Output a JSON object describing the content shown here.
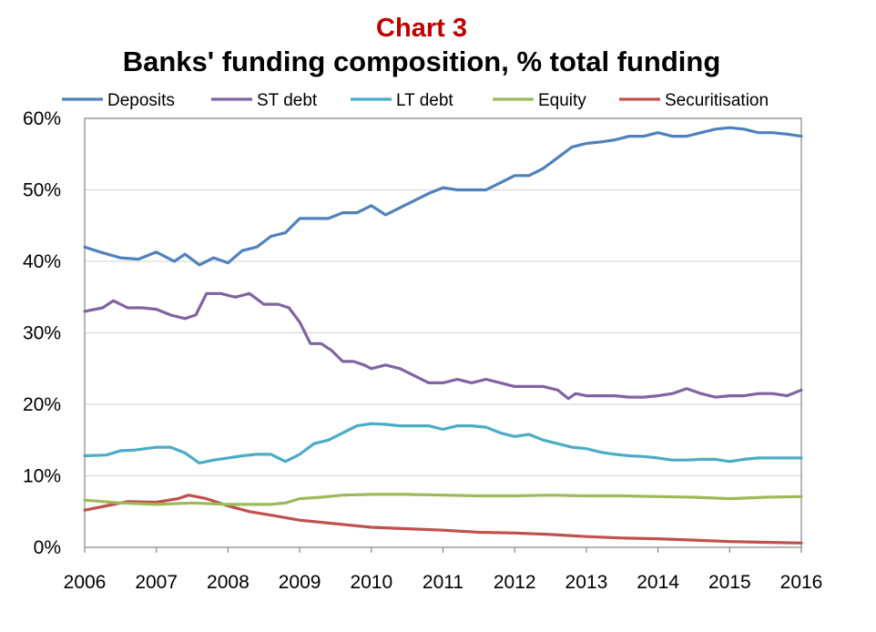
{
  "chart_data": {
    "type": "line",
    "kicker": "Chart 3",
    "title": "Banks' funding composition, % total funding",
    "xlabel": "",
    "ylabel": "",
    "xlim": [
      2006,
      2016
    ],
    "ylim": [
      0,
      60
    ],
    "x_ticks": [
      "2006",
      "2007",
      "2008",
      "2009",
      "2010",
      "2011",
      "2012",
      "2013",
      "2014",
      "2015",
      "2016"
    ],
    "y_ticks": [
      "0%",
      "10%",
      "20%",
      "30%",
      "40%",
      "50%",
      "60%"
    ],
    "grid": "horizontal",
    "legend_position": "top",
    "colors": {
      "kicker": "#c00000",
      "Deposits": "#4f81bd",
      "ST debt": "#8064a2",
      "LT debt": "#4bacc6",
      "Equity": "#9bbb59",
      "Securitisation": "#c0504d",
      "grid": "#d9d9d9",
      "axis": "#868686"
    },
    "series": [
      {
        "name": "Deposits",
        "x": [
          2006.0,
          2006.25,
          2006.5,
          2006.75,
          2007.0,
          2007.25,
          2007.4,
          2007.6,
          2007.8,
          2008.0,
          2008.2,
          2008.4,
          2008.6,
          2008.8,
          2009.0,
          2009.2,
          2009.4,
          2009.6,
          2009.8,
          2010.0,
          2010.2,
          2010.4,
          2010.6,
          2010.8,
          2011.0,
          2011.2,
          2011.4,
          2011.6,
          2011.8,
          2012.0,
          2012.2,
          2012.4,
          2012.6,
          2012.8,
          2013.0,
          2013.2,
          2013.4,
          2013.6,
          2013.8,
          2014.0,
          2014.2,
          2014.4,
          2014.6,
          2014.8,
          2015.0,
          2015.2,
          2015.4,
          2015.6,
          2015.8,
          2016.0
        ],
        "values": [
          42.0,
          41.2,
          40.5,
          40.3,
          41.3,
          40.0,
          41.0,
          39.5,
          40.5,
          39.8,
          41.5,
          42.0,
          43.5,
          44.0,
          46.0,
          46.0,
          46.0,
          46.8,
          46.8,
          47.8,
          46.5,
          47.5,
          48.5,
          49.5,
          50.3,
          50.0,
          50.0,
          50.0,
          51.0,
          52.0,
          52.0,
          53.0,
          54.5,
          56.0,
          56.5,
          56.7,
          57.0,
          57.5,
          57.5,
          58.0,
          57.5,
          57.5,
          58.0,
          58.5,
          58.7,
          58.5,
          58.0,
          58.0,
          57.8,
          57.5
        ]
      },
      {
        "name": "ST debt",
        "x": [
          2006.0,
          2006.25,
          2006.4,
          2006.6,
          2006.8,
          2007.0,
          2007.2,
          2007.4,
          2007.55,
          2007.7,
          2007.9,
          2008.1,
          2008.3,
          2008.5,
          2008.7,
          2008.85,
          2009.0,
          2009.15,
          2009.3,
          2009.45,
          2009.6,
          2009.75,
          2009.9,
          2010.0,
          2010.2,
          2010.4,
          2010.6,
          2010.8,
          2011.0,
          2011.2,
          2011.4,
          2011.6,
          2011.8,
          2012.0,
          2012.2,
          2012.4,
          2012.6,
          2012.75,
          2012.85,
          2013.0,
          2013.2,
          2013.4,
          2013.6,
          2013.8,
          2014.0,
          2014.2,
          2014.4,
          2014.6,
          2014.8,
          2015.0,
          2015.2,
          2015.4,
          2015.6,
          2015.8,
          2016.0
        ],
        "values": [
          33.0,
          33.5,
          34.5,
          33.5,
          33.5,
          33.3,
          32.5,
          32.0,
          32.5,
          35.5,
          35.5,
          35.0,
          35.5,
          34.0,
          34.0,
          33.5,
          31.5,
          28.5,
          28.5,
          27.5,
          26.0,
          26.0,
          25.5,
          25.0,
          25.5,
          25.0,
          24.0,
          23.0,
          23.0,
          23.5,
          23.0,
          23.5,
          23.0,
          22.5,
          22.5,
          22.5,
          22.0,
          20.8,
          21.5,
          21.2,
          21.2,
          21.2,
          21.0,
          21.0,
          21.2,
          21.5,
          22.2,
          21.5,
          21.0,
          21.2,
          21.2,
          21.5,
          21.5,
          21.2,
          22.0
        ]
      },
      {
        "name": "LT debt",
        "x": [
          2006.0,
          2006.3,
          2006.5,
          2006.7,
          2007.0,
          2007.2,
          2007.4,
          2007.6,
          2007.8,
          2008.0,
          2008.2,
          2008.4,
          2008.6,
          2008.8,
          2009.0,
          2009.2,
          2009.4,
          2009.6,
          2009.8,
          2010.0,
          2010.2,
          2010.4,
          2010.6,
          2010.8,
          2011.0,
          2011.2,
          2011.4,
          2011.6,
          2011.8,
          2012.0,
          2012.2,
          2012.4,
          2012.6,
          2012.8,
          2013.0,
          2013.2,
          2013.4,
          2013.6,
          2013.8,
          2014.0,
          2014.2,
          2014.4,
          2014.6,
          2014.8,
          2015.0,
          2015.2,
          2015.4,
          2015.6,
          2015.8,
          2016.0
        ],
        "values": [
          12.8,
          12.9,
          13.5,
          13.6,
          14.0,
          14.0,
          13.2,
          11.8,
          12.2,
          12.5,
          12.8,
          13.0,
          13.0,
          12.0,
          13.0,
          14.5,
          15.0,
          16.0,
          17.0,
          17.3,
          17.2,
          17.0,
          17.0,
          17.0,
          16.5,
          17.0,
          17.0,
          16.8,
          16.0,
          15.5,
          15.8,
          15.0,
          14.5,
          14.0,
          13.8,
          13.3,
          13.0,
          12.8,
          12.7,
          12.5,
          12.2,
          12.2,
          12.3,
          12.3,
          12.0,
          12.3,
          12.5,
          12.5,
          12.5,
          12.5
        ]
      },
      {
        "name": "Equity",
        "x": [
          2006.0,
          2006.5,
          2007.0,
          2007.5,
          2008.0,
          2008.3,
          2008.6,
          2008.8,
          2009.0,
          2009.3,
          2009.6,
          2010.0,
          2010.5,
          2011.0,
          2011.5,
          2012.0,
          2012.5,
          2013.0,
          2013.5,
          2014.0,
          2014.5,
          2015.0,
          2015.5,
          2016.0
        ],
        "values": [
          6.6,
          6.2,
          6.0,
          6.2,
          6.0,
          6.0,
          6.0,
          6.2,
          6.8,
          7.0,
          7.3,
          7.4,
          7.4,
          7.3,
          7.2,
          7.2,
          7.3,
          7.2,
          7.2,
          7.1,
          7.0,
          6.8,
          7.0,
          7.1
        ]
      },
      {
        "name": "Securitisation",
        "x": [
          2006.0,
          2006.3,
          2006.6,
          2007.0,
          2007.3,
          2007.45,
          2007.7,
          2008.0,
          2008.3,
          2008.6,
          2009.0,
          2009.5,
          2010.0,
          2010.5,
          2011.0,
          2011.5,
          2012.0,
          2012.5,
          2013.0,
          2013.5,
          2014.0,
          2014.5,
          2015.0,
          2015.5,
          2016.0
        ],
        "values": [
          5.2,
          5.8,
          6.4,
          6.3,
          6.8,
          7.3,
          6.8,
          5.8,
          5.0,
          4.5,
          3.8,
          3.3,
          2.8,
          2.6,
          2.4,
          2.1,
          2.0,
          1.8,
          1.5,
          1.3,
          1.2,
          1.0,
          0.8,
          0.7,
          0.6
        ]
      }
    ]
  }
}
